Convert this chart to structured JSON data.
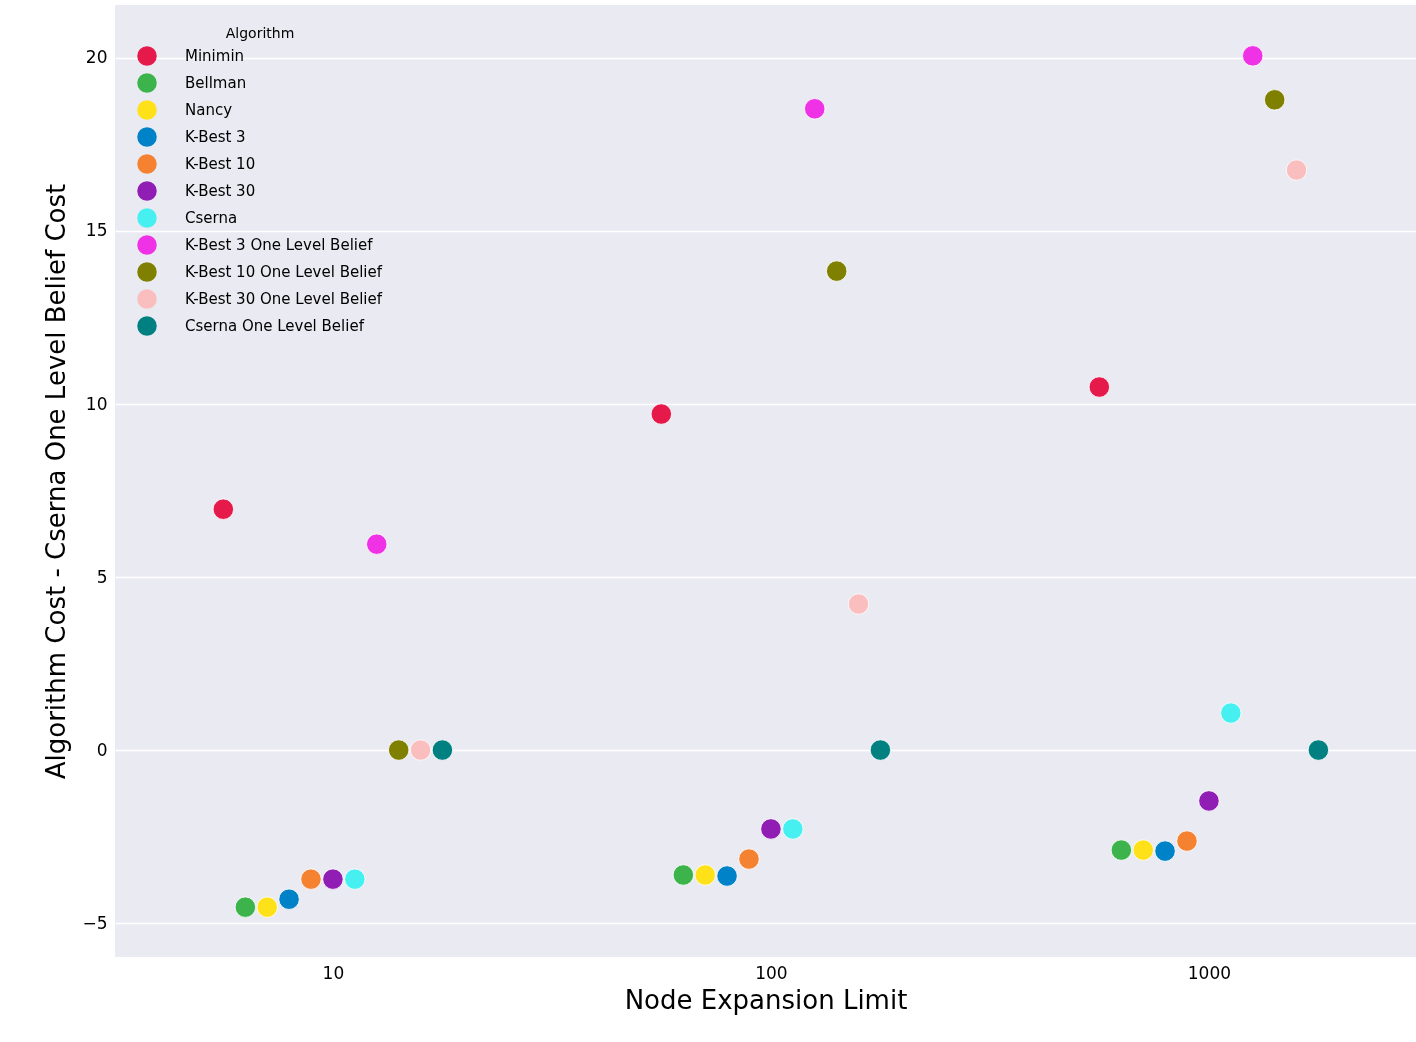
{
  "chart_data": {
    "type": "scatter",
    "xlabel": "Node Expansion Limit",
    "ylabel": "Algorithm Cost - Cserna One Level Belief Cost",
    "legend_title": "Algorithm",
    "legend": "top left",
    "grid": "y",
    "marker": "circle",
    "log": "x",
    "xlim": [
      3.18,
      2970
    ],
    "xticks": [
      10,
      100,
      1000
    ],
    "ylim": [
      -5.98,
      21.53
    ],
    "yticks": [
      -5,
      0,
      5,
      10,
      15,
      20
    ],
    "series": [
      {
        "name": "Minimin",
        "color": "#e6194b",
        "x": [
          5.62,
          56.2,
          562
        ],
        "values": [
          6.96,
          9.71,
          10.49
        ]
      },
      {
        "name": "Bellman",
        "color": "#3cb44b",
        "x": [
          6.31,
          63.1,
          631
        ],
        "values": [
          -4.54,
          -3.61,
          -2.89
        ]
      },
      {
        "name": "Nancy",
        "color": "#ffe119",
        "x": [
          7.08,
          70.8,
          708
        ],
        "values": [
          -4.54,
          -3.61,
          -2.89
        ]
      },
      {
        "name": "K-Best 3",
        "color": "#0082c8",
        "x": [
          7.94,
          79.4,
          794
        ],
        "values": [
          -4.31,
          -3.64,
          -2.92
        ]
      },
      {
        "name": "K-Best 10",
        "color": "#f58231",
        "x": [
          8.91,
          89.1,
          891
        ],
        "values": [
          -3.73,
          -3.15,
          -2.63
        ]
      },
      {
        "name": "K-Best 30",
        "color": "#911eb4",
        "x": [
          10,
          100,
          1000
        ],
        "values": [
          -3.73,
          -2.28,
          -1.47
        ]
      },
      {
        "name": "Cserna",
        "color": "#46f0f0",
        "x": [
          11.22,
          112.2,
          1122
        ],
        "values": [
          -3.73,
          -2.28,
          1.07
        ]
      },
      {
        "name": "K-Best 3 One Level Belief",
        "color": "#f032e6",
        "x": [
          12.59,
          125.9,
          1259
        ],
        "values": [
          5.95,
          18.53,
          20.06
        ]
      },
      {
        "name": "K-Best 10 One Level Belief",
        "color": "#808000",
        "x": [
          14.13,
          141.3,
          1413
        ],
        "values": [
          0,
          13.84,
          18.79
        ]
      },
      {
        "name": "K-Best 30 One Level Belief",
        "color": "#fabebe",
        "x": [
          15.85,
          158.5,
          1585
        ],
        "values": [
          0,
          4.22,
          16.76
        ]
      },
      {
        "name": "Cserna One Level Belief",
        "color": "#008080",
        "x": [
          17.78,
          177.8,
          1778
        ],
        "values": [
          0,
          0,
          0
        ]
      }
    ]
  }
}
